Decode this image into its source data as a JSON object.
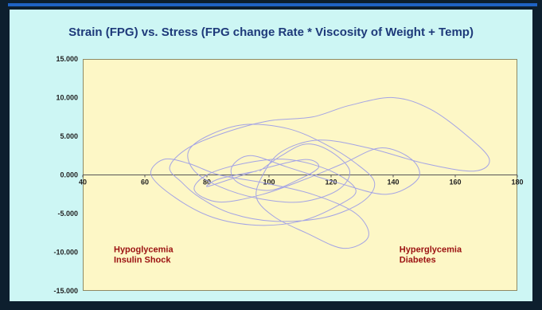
{
  "chart_data": {
    "type": "line",
    "title": "Strain (FPG) vs. Stress (FPG change Rate * Viscosity of Weight + Temp)",
    "xlabel": "",
    "ylabel": "",
    "xlim": [
      40,
      180
    ],
    "ylim": [
      -15,
      15
    ],
    "x_ticks": [
      "40",
      "60",
      "80",
      "100",
      "120",
      "140",
      "160",
      "180"
    ],
    "y_ticks": [
      "15.000",
      "10.000",
      "5.000",
      "0.000",
      "-5.000",
      "-10.000",
      "-15.000"
    ],
    "grid": false,
    "series": [
      {
        "x": [
          97,
          104,
          112,
          120,
          126,
          122,
          110,
          96,
          84,
          76,
          74,
          80,
          92,
          106,
          118,
          128,
          134,
          130,
          118,
          102,
          88,
          78,
          72,
          68,
          74,
          86,
          100,
          114,
          126,
          140,
          152,
          164,
          171,
          166,
          150,
          132,
          116,
          104,
          98,
          96,
          102,
          112,
          124,
          132,
          128,
          114,
          98,
          84,
          74,
          66,
          62,
          70,
          82,
          96,
          110,
          122,
          128,
          120,
          106,
          92,
          80,
          76,
          84,
          98,
          112,
          124,
          136,
          146,
          148,
          138,
          122,
          106,
          94,
          88,
          90,
          100,
          110,
          116,
          112,
          100,
          88,
          80,
          84,
          96
        ],
        "y": [
          0.5,
          2.5,
          4.0,
          3.0,
          0.5,
          -2.0,
          -3.5,
          -3.0,
          -1.5,
          0.5,
          3.0,
          5.0,
          6.5,
          6.0,
          4.0,
          1.5,
          -1.0,
          -3.5,
          -5.5,
          -6.0,
          -5.0,
          -3.0,
          -1.0,
          1.0,
          3.5,
          5.5,
          7.0,
          7.5,
          9.0,
          10.0,
          8.5,
          5.0,
          2.0,
          0.5,
          1.5,
          3.5,
          4.5,
          3.0,
          0.0,
          -3.0,
          -5.5,
          -7.5,
          -9.5,
          -8.0,
          -5.0,
          -2.5,
          -1.0,
          0.0,
          1.5,
          2.0,
          0.0,
          -3.0,
          -5.5,
          -6.5,
          -6.0,
          -4.0,
          -2.0,
          0.5,
          2.0,
          1.5,
          0.0,
          -2.0,
          -3.5,
          -2.5,
          -0.5,
          1.5,
          3.5,
          2.0,
          -0.5,
          -2.5,
          -1.0,
          1.0,
          2.5,
          1.0,
          -1.0,
          -2.0,
          -0.5,
          1.0,
          2.0,
          1.0,
          -0.5,
          -1.5,
          -0.5,
          0.5
        ]
      }
    ],
    "annotations": [
      {
        "lines": [
          "Hypoglycemia",
          "Insulin Shock"
        ],
        "x": 50,
        "y": -10
      },
      {
        "lines": [
          "Hyperglycemia",
          "Diabetes"
        ],
        "x": 142,
        "y": -10
      }
    ],
    "colors": {
      "line": "#9a9ae8",
      "plot_bg": "#fdf7c6",
      "panel_bg": "#cdf6f4",
      "annotation": "#9b1111",
      "title": "#1e3a7a"
    }
  }
}
